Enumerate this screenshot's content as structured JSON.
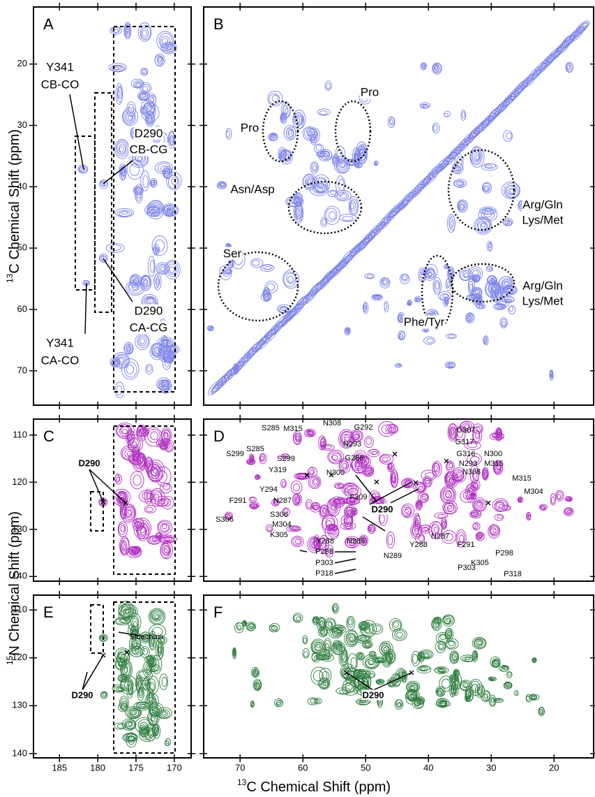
{
  "figure": {
    "ylabel_top": {
      "sup": "13",
      "rest": "C Chemical Shift (ppm)"
    },
    "ylabel_bottom": {
      "sup": "15",
      "rest": "N Chemical Shift (ppm)"
    },
    "xlabel": {
      "sup": "13",
      "rest": "C Chemical Shift (ppm)"
    }
  },
  "chart_data": [
    {
      "type": "contour",
      "panel": "A",
      "color": "#7b83e8",
      "xlim": [
        188.4,
        167.8
      ],
      "ylim": [
        10.7,
        75.6
      ],
      "xticks": [
        185,
        180,
        175,
        170
      ],
      "yticks": [
        20,
        30,
        40,
        50,
        60,
        70
      ],
      "show_xtick_labels": false,
      "show_ytick_labels": true,
      "annotations": [
        "Y341",
        "CB-CO",
        "D290",
        "CB-CG",
        "D290",
        "CA-CG",
        "Y341",
        "CA-CO"
      ]
    },
    {
      "type": "contour",
      "panel": "B",
      "color": "#7b83e8",
      "xlim": [
        75.8,
        13.7
      ],
      "ylim": [
        10.7,
        75.6
      ],
      "xticks": [
        70,
        60,
        50,
        40,
        30,
        20
      ],
      "yticks": [
        20,
        30,
        40,
        50,
        60,
        70
      ],
      "show_xtick_labels": false,
      "show_ytick_labels": false,
      "annotations": [
        "Pro",
        "Pro",
        "Asn/Asp",
        "Arg/Gln",
        "Lys/Met",
        "Ser",
        "Arg/Gln",
        "Lys/Met",
        "Phe/Tyr"
      ]
    },
    {
      "type": "contour",
      "panel": "C",
      "color": "#b030c0",
      "xlim": [
        188.4,
        167.8
      ],
      "ylim": [
        106.6,
        141.0
      ],
      "xticks": [
        185,
        180,
        175,
        170
      ],
      "yticks": [
        110,
        120,
        130,
        140
      ],
      "show_xtick_labels": false,
      "show_ytick_labels": true,
      "annotations": [
        "D290"
      ]
    },
    {
      "type": "contour",
      "panel": "D",
      "color": "#b030c0",
      "xlim": [
        75.8,
        13.7
      ],
      "ylim": [
        106.6,
        141.0
      ],
      "xticks": [
        70,
        60,
        50,
        40,
        30,
        20
      ],
      "yticks": [
        110,
        120,
        130,
        140
      ],
      "show_xtick_labels": false,
      "show_ytick_labels": false,
      "annotations": [
        "S285",
        "M315",
        "N308",
        "G292",
        "G307",
        "G317",
        "S285",
        "S299",
        "N293",
        "G286",
        "G316",
        "N300",
        "S299",
        "Y319",
        "N293",
        "M315",
        "N300",
        "N308",
        "Y294",
        "M315",
        "F309",
        "M304",
        "F291",
        "N287",
        "S306",
        "M304",
        "K305",
        "D290",
        "S306",
        "Y288",
        "N289",
        "N289",
        "Y288",
        "N287",
        "F291",
        "K305",
        "P298",
        "P298",
        "P303",
        "P318",
        "P303",
        "P318"
      ]
    },
    {
      "type": "contour",
      "panel": "E",
      "color": "#2e7d3e",
      "xlim": [
        188.4,
        167.8
      ],
      "ylim": [
        106.9,
        140.9
      ],
      "xticks": [
        185,
        180,
        175,
        170
      ],
      "yticks": [
        110,
        120,
        130,
        140
      ],
      "show_xtick_labels": true,
      "show_ytick_labels": true,
      "annotations": [
        "Sidechain",
        "D290"
      ]
    },
    {
      "type": "contour",
      "panel": "F",
      "color": "#2e7d3e",
      "xlim": [
        75.8,
        13.7
      ],
      "ylim": [
        106.9,
        140.9
      ],
      "xticks": [
        70,
        60,
        50,
        40,
        30,
        20
      ],
      "yticks": [
        110,
        120,
        130,
        140
      ],
      "show_xtick_labels": true,
      "show_ytick_labels": false,
      "annotations": [
        "D290"
      ]
    }
  ]
}
